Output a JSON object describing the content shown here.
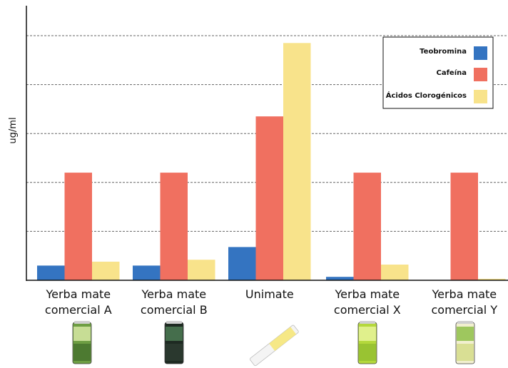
{
  "chart_data": {
    "type": "bar",
    "title": "",
    "xlabel": "",
    "ylabel": "ug/ml",
    "ylim": [
      0,
      5.25
    ],
    "grid": true,
    "legend_position": "top-right",
    "categories": [
      [
        "Yerba mate",
        "comercial A"
      ],
      [
        "Yerba mate",
        "comercial B"
      ],
      [
        "Unimate"
      ],
      [
        "Yerba mate",
        "comercial X"
      ],
      [
        "Yerba mate",
        "comercial Y"
      ]
    ],
    "series": [
      {
        "name": "Teobromina",
        "color": "#3474c1",
        "values": [
          0.3,
          0.3,
          0.68,
          0.07,
          0.0
        ]
      },
      {
        "name": "Cafeína",
        "color": "#f07060",
        "values": [
          2.2,
          2.2,
          3.35,
          2.2,
          2.2
        ]
      },
      {
        "name": "Ácidos Clorogénicos",
        "color": "#f8e38b",
        "values": [
          0.38,
          0.42,
          4.85,
          0.32,
          0.03
        ]
      }
    ]
  },
  "images": [
    {
      "name": "can-a-image",
      "icon": "green-can"
    },
    {
      "name": "can-b-image",
      "icon": "dark-plaid-can"
    },
    {
      "name": "unimate-stick-image",
      "icon": "powder-stick"
    },
    {
      "name": "can-x-image",
      "icon": "lime-can"
    },
    {
      "name": "can-y-image",
      "icon": "white-green-can"
    }
  ]
}
